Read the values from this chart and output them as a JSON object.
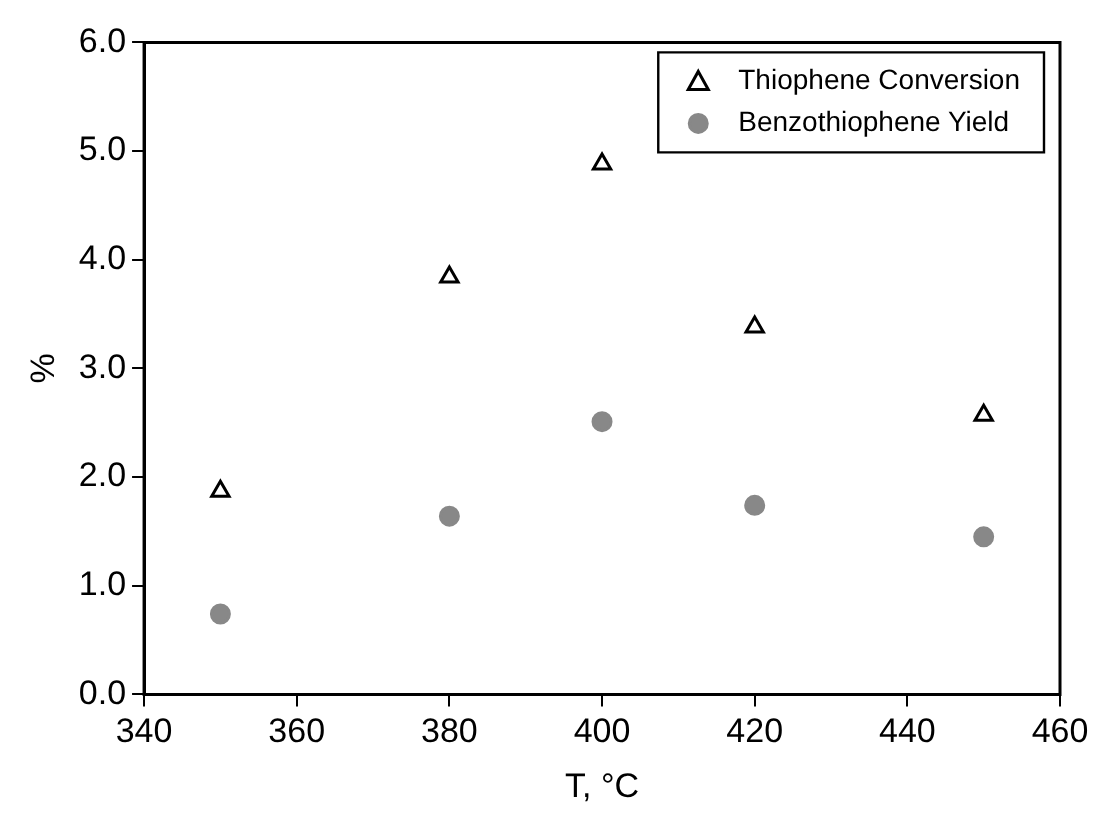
{
  "chart_data": {
    "type": "scatter",
    "xlabel": "T, °C",
    "ylabel": "%",
    "x": [
      350,
      380,
      400,
      420,
      450
    ],
    "series": [
      {
        "name": "Thiophene Conversion",
        "color": "#000000",
        "marker": "triangle",
        "values": [
          1.87,
          3.84,
          4.88,
          3.38,
          2.57
        ]
      },
      {
        "name": "Benzothiophene Yield",
        "color": "#888888",
        "marker": "circle",
        "values": [
          0.74,
          1.64,
          2.51,
          1.74,
          1.45
        ]
      }
    ],
    "xlim": [
      340,
      460
    ],
    "xticks": [
      340,
      360,
      380,
      400,
      420,
      440,
      460
    ],
    "ylim": [
      0,
      6
    ],
    "yticks": [
      {
        "value": 0,
        "label": "0.0"
      },
      {
        "value": 1,
        "label": "1.0"
      },
      {
        "value": 2,
        "label": "2.0"
      },
      {
        "value": 3,
        "label": "3.0"
      },
      {
        "value": 4,
        "label": "4.0"
      },
      {
        "value": 5,
        "label": "5.0"
      },
      {
        "value": 6,
        "label": "6.0"
      }
    ],
    "grid": false,
    "legend": "top right"
  }
}
